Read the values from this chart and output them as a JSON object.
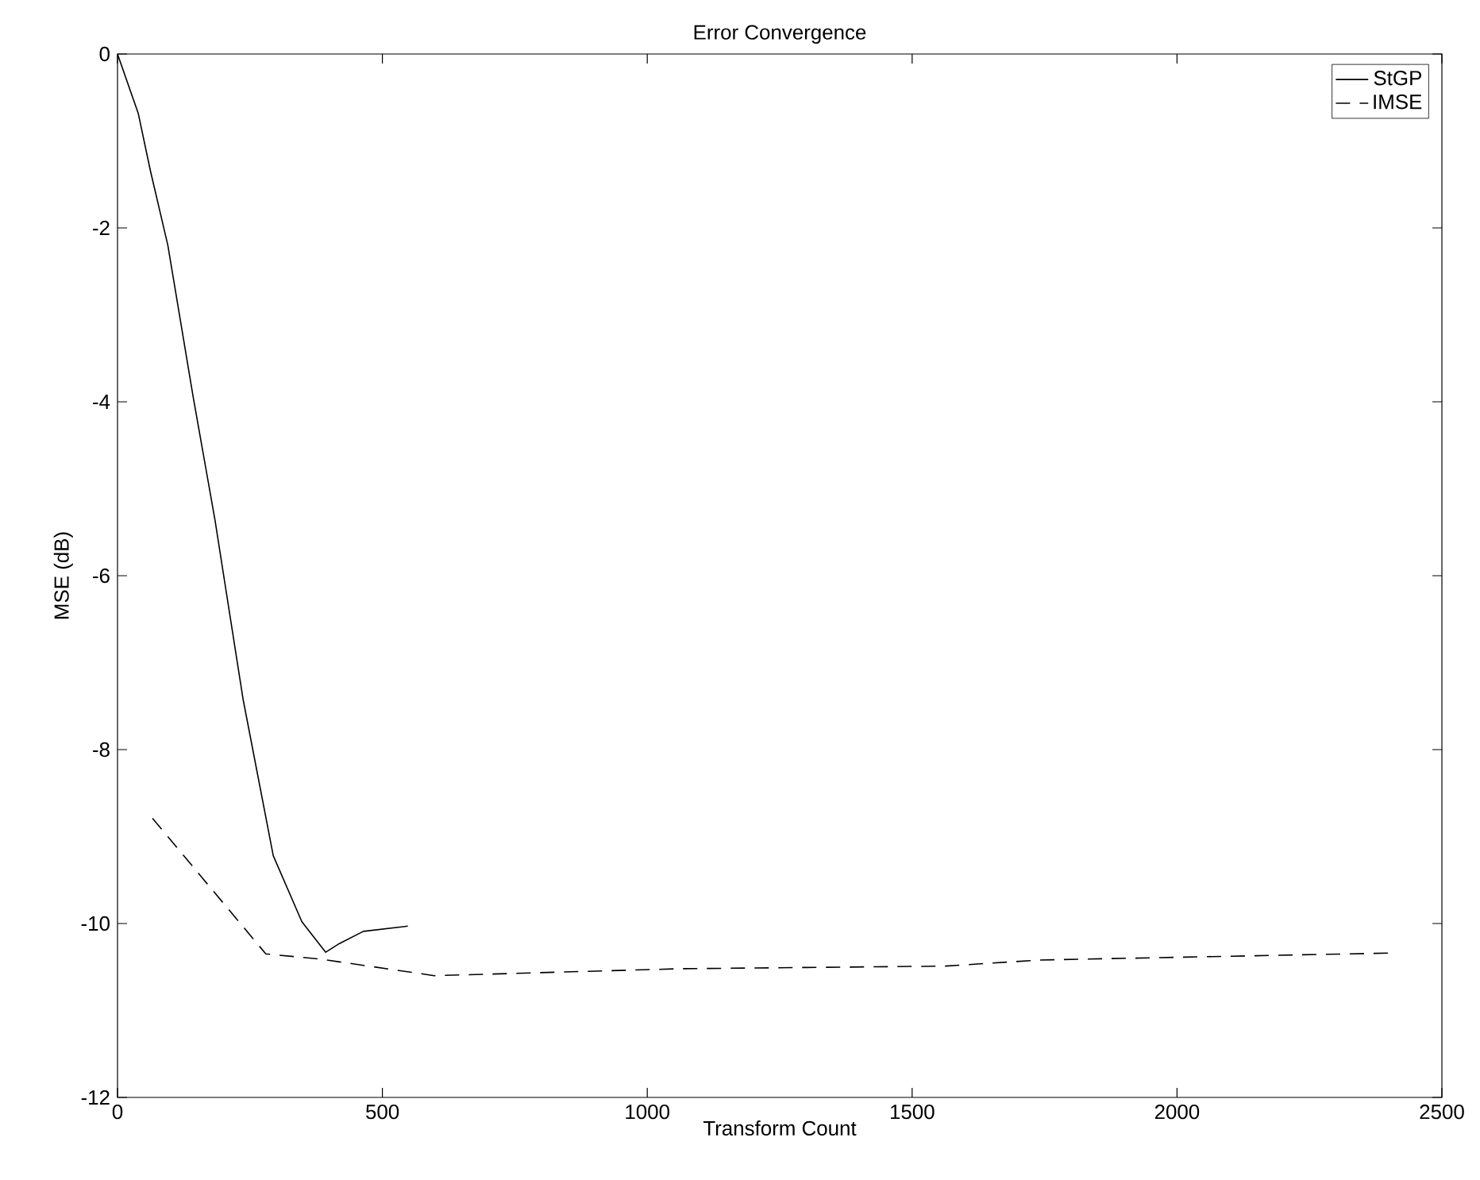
{
  "chart_data": {
    "type": "line",
    "title": "Error Convergence",
    "xlabel": "Transform Count",
    "ylabel": "MSE (dB)",
    "xlim": [
      0,
      2500
    ],
    "ylim": [
      -12,
      0
    ],
    "xticks": [
      0,
      500,
      1000,
      1500,
      2000,
      2500
    ],
    "yticks": [
      -12,
      -10,
      -8,
      -6,
      -4,
      -2,
      0
    ],
    "legend": "top right",
    "grid": false,
    "series": [
      {
        "name": "StGP",
        "color": "#000000",
        "line_style": "solid",
        "x": [
          0,
          39,
          62,
          95,
          143,
          184,
          237,
          294,
          348,
          393,
          419,
          464,
          548
        ],
        "values": [
          0,
          -0.68,
          -1.34,
          -2.2,
          -3.95,
          -5.36,
          -7.42,
          -9.22,
          -9.98,
          -10.33,
          -10.23,
          -10.09,
          -10.03
        ]
      },
      {
        "name": "IMSE",
        "color": "#000000",
        "line_style": "dashed",
        "x": [
          66,
          280,
          384,
          598,
          1062,
          1561,
          1740,
          2400
        ],
        "values": [
          -8.79,
          -10.35,
          -10.41,
          -10.6,
          -10.52,
          -10.49,
          -10.42,
          -10.34
        ]
      }
    ]
  }
}
